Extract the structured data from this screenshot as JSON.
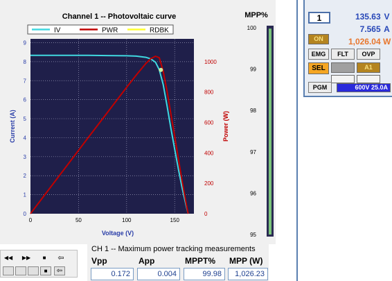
{
  "pv_chart": {
    "title": "Channel 1 -- Photovoltaic curve",
    "legend": [
      {
        "name": "IV",
        "color": "#40d8e0"
      },
      {
        "name": "PWR",
        "color": "#c00000"
      },
      {
        "name": "RDBK",
        "color": "#ffff30"
      }
    ],
    "xlabel": "Voltage (V)",
    "ylabel_left": "Current (A)",
    "ylabel_right": "Power (W)",
    "x_ticks": [
      "0",
      "50",
      "100",
      "150"
    ],
    "y_left_ticks": [
      "0",
      "1",
      "2",
      "3",
      "4",
      "5",
      "6",
      "7",
      "8",
      "9"
    ],
    "y_right_ticks": [
      "0",
      "200",
      "400",
      "600",
      "800",
      "1000"
    ]
  },
  "chart_data": [
    {
      "type": "line",
      "title": "Channel 1 -- Photovoltaic curve",
      "xlabel": "Voltage (V)",
      "ylabel": "Current (A)",
      "ylabel_right": "Power (W)",
      "xlim": [
        0,
        170
      ],
      "ylim": [
        0,
        9.2
      ],
      "ylim_right": [
        0,
        1150
      ],
      "grid": true,
      "legend_position": "top",
      "series": [
        {
          "name": "IV",
          "axis": "left",
          "color": "#40d8e0",
          "x": [
            0,
            20,
            40,
            60,
            80,
            100,
            110,
            120,
            125,
            130,
            134,
            138,
            142,
            146,
            150,
            154,
            158,
            162,
            164
          ],
          "y": [
            8.33,
            8.33,
            8.33,
            8.33,
            8.32,
            8.31,
            8.29,
            8.23,
            8.15,
            7.97,
            7.57,
            6.8,
            5.7,
            4.5,
            3.4,
            2.3,
            1.3,
            0.4,
            0
          ]
        },
        {
          "name": "PWR",
          "axis": "right",
          "color": "#c00000",
          "x": [
            0,
            20,
            40,
            60,
            80,
            100,
            110,
            120,
            125,
            130,
            134,
            138,
            142,
            146,
            150,
            154,
            158,
            162,
            164
          ],
          "y": [
            0,
            167,
            333,
            500,
            666,
            831,
            912,
            988,
            1019,
            1036,
            1026,
            938,
            809,
            657,
            510,
            354,
            205,
            65,
            0
          ]
        },
        {
          "name": "RDBK",
          "axis": "left",
          "color": "#ffff30",
          "x": [
            135.63
          ],
          "y": [
            7.565
          ]
        }
      ]
    },
    {
      "type": "bar",
      "title": "MPP%",
      "categories": [
        "MPP%"
      ],
      "values": [
        99.98
      ],
      "ylim": [
        95,
        100
      ],
      "y_ticks": [
        "100",
        "99",
        "98",
        "97",
        "96",
        "95"
      ]
    }
  ],
  "mpp_gauge": {
    "title": "MPP%",
    "ticks": [
      "100",
      "99",
      "98",
      "97",
      "96",
      "95"
    ],
    "value": 99.98,
    "min": 95,
    "max": 100
  },
  "status": {
    "channel": "1",
    "voltage": "135.63",
    "voltage_unit": "V",
    "current": "7.565",
    "current_unit": "A",
    "power": "1,026.04",
    "power_unit": "W",
    "on_label": "ON",
    "emg_label": "EMG",
    "flt_label": "FLT",
    "ovp_label": "OVP",
    "sel_label": "SEL",
    "a1_label": "A1",
    "pgm_label": "PGM",
    "rating": "600V 25.0A"
  },
  "measurements": {
    "title": "CH 1 -- Maximum power tracking measurements",
    "vpp_label": "Vpp",
    "vpp_value": "0.172",
    "app_label": "App",
    "app_value": "0.004",
    "mppt_label": "MPPT%",
    "mppt_value": "99.98",
    "mpp_label": "MPP (W)",
    "mpp_value": "1,026.23"
  },
  "nav": {
    "rewind_icon": "rewind-icon",
    "forward_icon": "fast-forward-icon",
    "stop_icon": "stop-icon",
    "back_icon": "back-arrow-icon"
  }
}
